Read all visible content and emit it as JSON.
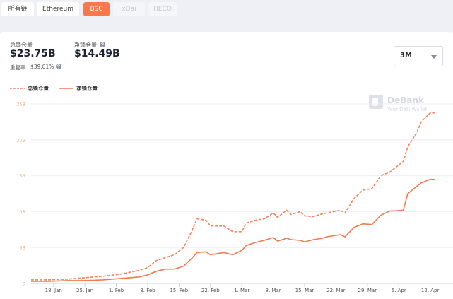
{
  "tabs": [
    {
      "label": "所有链"
    },
    {
      "label": "Ethereum"
    },
    {
      "label": "BSC",
      "selected": true
    },
    {
      "label": "xDai",
      "disabled": true
    },
    {
      "label": "HECO",
      "disabled": true
    }
  ],
  "stats": [
    {
      "label": "总锁仓量",
      "value": "$23.75B"
    },
    {
      "label": "净锁仓量",
      "value": "$14.49B",
      "help": true
    }
  ],
  "repeat_rate": {
    "label": "重复率",
    "value": "$39.01%",
    "help": true
  },
  "range_select": "3M",
  "watermark": {
    "brand": "DeBank",
    "tagline": "Your DeFi Wallet"
  },
  "chart": {
    "type": "line",
    "x": [
      13,
      17,
      21,
      25,
      29,
      33,
      37,
      39,
      41,
      43,
      45,
      47,
      49,
      50,
      52,
      53,
      56,
      58,
      60,
      61,
      63,
      65,
      67,
      68,
      70,
      71,
      73,
      74,
      76,
      78,
      79,
      82,
      83,
      85,
      87,
      89,
      91,
      93,
      94,
      96,
      97,
      99,
      100,
      102,
      103
    ],
    "xlim": [
      13,
      103
    ],
    "xticks": [
      {
        "value": 18,
        "label": "18. Jan"
      },
      {
        "value": 25,
        "label": "25. Jan"
      },
      {
        "value": 32,
        "label": "1. Feb"
      },
      {
        "value": 39,
        "label": "8. Feb"
      },
      {
        "value": 46,
        "label": "15. Feb"
      },
      {
        "value": 53,
        "label": "22. Feb"
      },
      {
        "value": 60,
        "label": "1. Mar"
      },
      {
        "value": 67,
        "label": "8. Mar"
      },
      {
        "value": 74,
        "label": "15. Mar"
      },
      {
        "value": 81,
        "label": "22. Mar"
      },
      {
        "value": 88,
        "label": "29. Mar"
      },
      {
        "value": 95,
        "label": "5. Apr"
      },
      {
        "value": 102,
        "label": "12. Apr"
      }
    ],
    "ylim": [
      0,
      25
    ],
    "yticks": [
      0,
      {
        "value": 5,
        "label": "5B"
      },
      {
        "value": 10,
        "label": "10B"
      },
      {
        "value": 15,
        "label": "15B"
      },
      {
        "value": 20,
        "label": "20B"
      },
      {
        "value": 25,
        "label": "25B"
      }
    ],
    "grid": true,
    "series": [
      {
        "name": "总锁仓量",
        "color": "#f4845a",
        "line_style": "dashed",
        "values": [
          0.5,
          0.5,
          0.6,
          0.8,
          1.0,
          1.3,
          1.8,
          2.2,
          3.2,
          3.6,
          4.0,
          5.0,
          7.5,
          9.0,
          8.8,
          8.0,
          8.0,
          7.2,
          7.2,
          8.4,
          8.8,
          9.0,
          9.8,
          9.2,
          10.2,
          9.6,
          10.0,
          9.4,
          9.3,
          9.7,
          9.8,
          10.2,
          9.8,
          11.8,
          13.0,
          13.2,
          15.0,
          15.5,
          16.0,
          17.0,
          19.0,
          21.0,
          22.5,
          23.75,
          23.75
        ]
      },
      {
        "name": "净锁仓量",
        "color": "#f27a50",
        "line_style": "solid",
        "values": [
          0.3,
          0.3,
          0.4,
          0.4,
          0.5,
          0.7,
          0.9,
          1.2,
          1.7,
          2.0,
          2.0,
          2.4,
          3.6,
          4.3,
          4.4,
          4.0,
          4.3,
          4.0,
          4.6,
          5.3,
          5.7,
          6.0,
          6.4,
          5.9,
          6.3,
          6.1,
          6.0,
          5.8,
          6.1,
          6.3,
          6.5,
          6.8,
          6.5,
          7.8,
          8.3,
          8.2,
          9.5,
          10.1,
          10.1,
          10.2,
          12.5,
          13.5,
          14.0,
          14.49,
          14.49
        ]
      }
    ]
  }
}
